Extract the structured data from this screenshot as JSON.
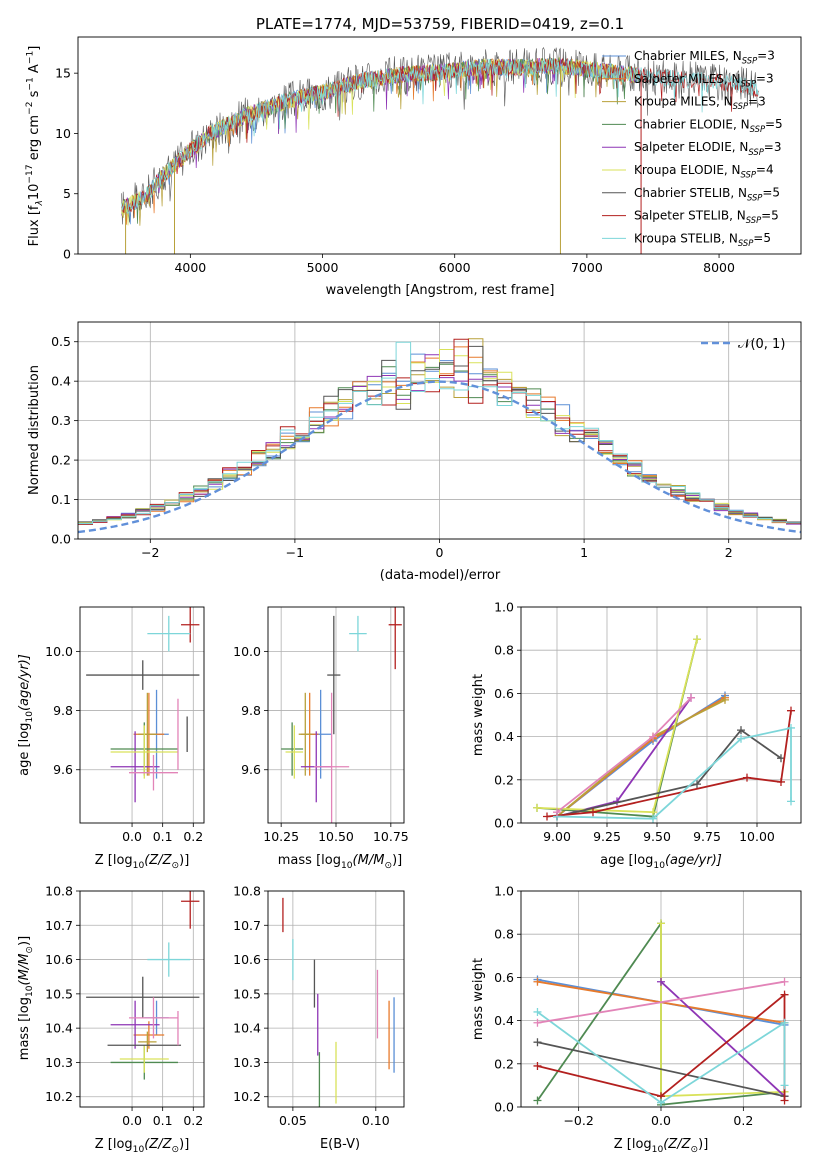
{
  "figure": {
    "title": "PLATE=1774, MJD=53759, FIBERID=0419, z=0.1"
  },
  "colors": {
    "Chabrier MILES": "#5b8fd6",
    "Salpeter MILES": "#e77a2c",
    "Kroupa MILES": "#b8a13a",
    "Chabrier ELODIE": "#4f8a52",
    "Salpeter ELODIE": "#8e35b5",
    "Kroupa ELODIE": "#d9e25a",
    "Chabrier STELIB": "#555555",
    "Salpeter STELIB": "#b3201f",
    "Kroupa STELIB": "#7dd6d9",
    "pink": "#e284b8",
    "lightgreen": "#9fd46a",
    "normal_curve": "#6190d9",
    "grid": "#b0b0b0"
  },
  "chart_data": [
    {
      "id": "spectrum",
      "type": "line",
      "title": "PLATE=1774, MJD=53759, FIBERID=0419, z=0.1",
      "xlabel": "wavelength [Angstrom, rest frame]",
      "ylabel_main": "Flux [f",
      "ylabel_sub": "λ",
      "ylabel_rest": "10",
      "ylabel_exp": "−17",
      "ylabel_unit": " erg cm",
      "ylabel_unit_exp": "−2",
      "ylabel_unit2": " s",
      "ylabel_unit2_exp": "−1",
      "ylabel_unit3": " A",
      "ylabel_unit3_exp": "−1",
      "ylabel_close": "]",
      "xlim": [
        3150,
        8620
      ],
      "ylim": [
        0,
        18
      ],
      "xticks": [
        4000,
        5000,
        6000,
        7000,
        8000
      ],
      "yticks": [
        0,
        5,
        10,
        15
      ],
      "grid": false,
      "continuum": [
        [
          3480,
          3.8
        ],
        [
          3650,
          4.7
        ],
        [
          3800,
          6.6
        ],
        [
          3950,
          8.1
        ],
        [
          4150,
          10.0
        ],
        [
          4400,
          11.4
        ],
        [
          4700,
          12.6
        ],
        [
          5000,
          13.4
        ],
        [
          5300,
          14.4
        ],
        [
          5600,
          14.9
        ],
        [
          5900,
          15.1
        ],
        [
          6200,
          15.5
        ],
        [
          6500,
          15.5
        ],
        [
          6800,
          15.6
        ],
        [
          7100,
          15.2
        ],
        [
          7400,
          14.8
        ],
        [
          7700,
          14.5
        ],
        [
          8000,
          14.3
        ],
        [
          8300,
          13.7
        ]
      ],
      "spikes": [
        [
          3510,
          0
        ],
        [
          3880,
          0
        ],
        [
          6800,
          0
        ],
        [
          7410,
          0
        ]
      ],
      "legend_position": "right",
      "legend": [
        {
          "name": "Chabrier MILES",
          "n": "3"
        },
        {
          "name": "Salpeter MILES",
          "n": "3"
        },
        {
          "name": "Kroupa MILES",
          "n": "3"
        },
        {
          "name": "Chabrier ELODIE",
          "n": "5"
        },
        {
          "name": "Salpeter ELODIE",
          "n": "3"
        },
        {
          "name": "Kroupa ELODIE",
          "n": "4"
        },
        {
          "name": "Chabrier STELIB",
          "n": "5"
        },
        {
          "name": "Salpeter STELIB",
          "n": "5"
        },
        {
          "name": "Kroupa STELIB",
          "n": "5"
        }
      ]
    },
    {
      "id": "residuals",
      "type": "line",
      "xlabel": "(data-model)/error",
      "ylabel": "Normed distribution",
      "xlim": [
        -2.5,
        2.5
      ],
      "ylim": [
        0,
        0.55
      ],
      "xticks": [
        -2,
        -1,
        0,
        1,
        2
      ],
      "yticks": [
        0.0,
        0.1,
        0.2,
        0.3,
        0.4,
        0.5
      ],
      "grid": true,
      "legend_position": "top-right",
      "legend_label": "𝒩(0, 1)",
      "histogram": {
        "bin_width": 0.1,
        "range": [
          -2.5,
          2.5
        ],
        "series_count": 9
      }
    },
    {
      "id": "z_age",
      "type": "scatter",
      "xlabel_pre": "Z [log",
      "xlabel_sub": "10",
      "xlabel_post": "(Z/Z",
      "xlabel_sun": "⊙",
      "xlabel_end": ")]",
      "ylabel_pre": "age  [log",
      "ylabel_sub": "10",
      "ylabel_post": "(age/yr)]",
      "xlim": [
        -0.17,
        0.235
      ],
      "ylim": [
        9.42,
        10.15
      ],
      "xticks": [
        0.0,
        0.1,
        0.2
      ],
      "yticks": [
        9.6,
        9.8,
        10.0
      ],
      "grid": true,
      "points": [
        {
          "s": "Chabrier MILES",
          "x": 0.08,
          "y": 9.72,
          "dx": 0.04,
          "dy": 0.15
        },
        {
          "s": "Salpeter MILES",
          "x": 0.055,
          "y": 9.72,
          "dx": 0.05,
          "dy": 0.14
        },
        {
          "s": "Kroupa MILES",
          "x": 0.05,
          "y": 9.72,
          "dx": 0.03,
          "dy": 0.14
        },
        {
          "s": "Chabrier ELODIE",
          "x": 0.04,
          "y": 9.67,
          "dx": 0.11,
          "dy": 0.09
        },
        {
          "s": "Salpeter ELODIE",
          "x": 0.01,
          "y": 9.61,
          "dx": 0.08,
          "dy": 0.12
        },
        {
          "s": "Kroupa ELODIE",
          "x": 0.04,
          "y": 9.66,
          "dx": 0.11,
          "dy": 0.09
        },
        {
          "s": "Chabrier STELIB",
          "x": 0.035,
          "y": 9.92,
          "dx": 0.185,
          "dy": 0.05
        },
        {
          "s": "Salpeter STELIB",
          "x": 0.19,
          "y": 10.09,
          "dx": 0.03,
          "dy": 0.06
        },
        {
          "s": "Kroupa STELIB",
          "x": 0.12,
          "y": 10.06,
          "dx": 0.07,
          "dy": 0.06
        },
        {
          "s": "pink",
          "x": 0.07,
          "y": 9.59,
          "dx": 0.08,
          "dy": 0.06
        },
        {
          "s": "Chabrier STELIB",
          "x": 0.18,
          "y": 9.72,
          "dx": 0.0,
          "dy": 0.06
        },
        {
          "s": "pink",
          "x": 0.15,
          "y": 9.72,
          "dx": 0.0,
          "dy": 0.12
        }
      ]
    },
    {
      "id": "mass_age",
      "type": "scatter",
      "xlabel_pre": "mass [log",
      "xlabel_sub": "10",
      "xlabel_post": "(M/M",
      "xlabel_sun": "⊙",
      "xlabel_end": ")]",
      "xlim": [
        10.19,
        10.81
      ],
      "ylim": [
        9.42,
        10.15
      ],
      "xticks": [
        10.25,
        10.5,
        10.75
      ],
      "yticks": [
        9.6,
        9.8,
        10.0
      ],
      "grid": true,
      "points": [
        {
          "s": "Chabrier MILES",
          "x": 10.43,
          "y": 9.72,
          "dx": 0.05,
          "dy": 0.15
        },
        {
          "s": "Salpeter MILES",
          "x": 10.38,
          "y": 9.72,
          "dx": 0.04,
          "dy": 0.14
        },
        {
          "s": "Kroupa MILES",
          "x": 10.36,
          "y": 9.72,
          "dx": 0.03,
          "dy": 0.14
        },
        {
          "s": "Chabrier ELODIE",
          "x": 10.3,
          "y": 9.67,
          "dx": 0.05,
          "dy": 0.09
        },
        {
          "s": "Salpeter ELODIE",
          "x": 10.41,
          "y": 9.61,
          "dx": 0.07,
          "dy": 0.12
        },
        {
          "s": "Kroupa ELODIE",
          "x": 10.31,
          "y": 9.66,
          "dx": 0.04,
          "dy": 0.09
        },
        {
          "s": "Chabrier STELIB",
          "x": 10.49,
          "y": 9.92,
          "dx": 0.03,
          "dy": 0.2
        },
        {
          "s": "Salpeter STELIB",
          "x": 10.77,
          "y": 10.09,
          "dx": 0.03,
          "dy": 0.15
        },
        {
          "s": "Kroupa STELIB",
          "x": 10.6,
          "y": 10.06,
          "dx": 0.04,
          "dy": 0.06
        },
        {
          "s": "pink",
          "x": 10.48,
          "y": 9.61,
          "dx": 0.08,
          "dy": 0.25
        }
      ]
    },
    {
      "id": "age_weight",
      "type": "line",
      "xlabel_pre": "age  [log",
      "xlabel_sub": "10",
      "xlabel_post": "(age/yr)]",
      "ylabel": "mass weight",
      "xlim": [
        8.82,
        10.22
      ],
      "ylim": [
        0.0,
        1.0
      ],
      "xticks": [
        9.0,
        9.25,
        9.5,
        9.75,
        10.0
      ],
      "yticks": [
        0.0,
        0.2,
        0.4,
        0.6,
        0.8,
        1.0
      ],
      "grid": true,
      "series": [
        {
          "s": "Chabrier MILES",
          "x": [
            9.0,
            9.48,
            9.84
          ],
          "y": [
            0.03,
            0.38,
            0.59
          ]
        },
        {
          "s": "Salpeter MILES",
          "x": [
            9.0,
            9.48,
            9.84
          ],
          "y": [
            0.03,
            0.39,
            0.58
          ]
        },
        {
          "s": "Kroupa MILES",
          "x": [
            9.0,
            9.48,
            9.84
          ],
          "y": [
            0.03,
            0.4,
            0.57
          ]
        },
        {
          "s": "Chabrier ELODIE",
          "x": [
            8.9,
            9.48,
            9.7
          ],
          "y": [
            0.07,
            0.03,
            0.85
          ]
        },
        {
          "s": "Salpeter ELODIE",
          "x": [
            9.0,
            9.3,
            9.67
          ],
          "y": [
            0.03,
            0.1,
            0.58
          ]
        },
        {
          "s": "Kroupa ELODIE",
          "x": [
            8.9,
            9.48,
            9.7
          ],
          "y": [
            0.07,
            0.05,
            0.85
          ]
        },
        {
          "s": "Chabrier STELIB",
          "x": [
            9.0,
            9.7,
            9.92,
            10.12
          ],
          "y": [
            0.03,
            0.18,
            0.43,
            0.3
          ]
        },
        {
          "s": "Salpeter STELIB",
          "x": [
            8.95,
            9.18,
            9.95,
            10.12,
            10.17
          ],
          "y": [
            0.03,
            0.05,
            0.21,
            0.19,
            0.52
          ]
        },
        {
          "s": "Kroupa STELIB",
          "x": [
            9.0,
            9.48,
            9.92,
            10.17,
            10.17
          ],
          "y": [
            0.03,
            0.02,
            0.39,
            0.44,
            0.1
          ]
        },
        {
          "s": "pink",
          "x": [
            9.0,
            9.48,
            9.67
          ],
          "y": [
            0.05,
            0.4,
            0.58
          ]
        }
      ]
    },
    {
      "id": "z_mass",
      "type": "scatter",
      "xlabel_pre": "Z [log",
      "xlabel_sub": "10",
      "xlabel_post": "(Z/Z",
      "xlabel_sun": "⊙",
      "xlabel_end": ")]",
      "ylabel_pre": "mass [log",
      "ylabel_sub": "10",
      "ylabel_post": "(M/M",
      "ylabel_sun": "⊙",
      "ylabel_end": ")]",
      "xlim": [
        -0.17,
        0.235
      ],
      "ylim": [
        10.17,
        10.8
      ],
      "xticks": [
        0.0,
        0.1,
        0.2
      ],
      "yticks": [
        10.2,
        10.3,
        10.4,
        10.5,
        10.6,
        10.7,
        10.8
      ],
      "grid": true,
      "points": [
        {
          "s": "Chabrier MILES",
          "x": 0.08,
          "y": 10.43,
          "dx": 0.04,
          "dy": 0.05
        },
        {
          "s": "Salpeter MILES",
          "x": 0.055,
          "y": 10.38,
          "dx": 0.05,
          "dy": 0.04
        },
        {
          "s": "Kroupa MILES",
          "x": 0.05,
          "y": 10.36,
          "dx": 0.03,
          "dy": 0.03
        },
        {
          "s": "Chabrier ELODIE",
          "x": 0.04,
          "y": 10.3,
          "dx": 0.11,
          "dy": 0.05
        },
        {
          "s": "Salpeter ELODIE",
          "x": 0.01,
          "y": 10.41,
          "dx": 0.08,
          "dy": 0.07
        },
        {
          "s": "Kroupa ELODIE",
          "x": 0.04,
          "y": 10.31,
          "dx": 0.08,
          "dy": 0.04
        },
        {
          "s": "Chabrier STELIB",
          "x": 0.035,
          "y": 10.49,
          "dx": 0.185,
          "dy": 0.06
        },
        {
          "s": "Salpeter STELIB",
          "x": 0.19,
          "y": 10.77,
          "dx": 0.03,
          "dy": 0.08
        },
        {
          "s": "Kroupa STELIB",
          "x": 0.12,
          "y": 10.6,
          "dx": 0.07,
          "dy": 0.05
        },
        {
          "s": "pink",
          "x": 0.07,
          "y": 10.43,
          "dx": 0.08,
          "dy": 0.06
        },
        {
          "s": "Chabrier STELIB",
          "x": 0.04,
          "y": 10.35,
          "dx": 0.12,
          "dy": 0.0
        },
        {
          "s": "pink",
          "x": 0.15,
          "y": 10.4,
          "dx": 0.0,
          "dy": 0.05
        }
      ]
    },
    {
      "id": "ebv_mass",
      "type": "scatter",
      "xlabel": "E(B-V)",
      "xlim": [
        0.035,
        0.117
      ],
      "ylim": [
        10.17,
        10.8
      ],
      "xticks": [
        0.05,
        0.1
      ],
      "yticks": [
        10.2,
        10.3,
        10.4,
        10.5,
        10.6,
        10.7,
        10.8
      ],
      "grid": true,
      "points": [
        {
          "s": "Salpeter STELIB",
          "x": 0.044,
          "y": 10.73,
          "dx": 0.0,
          "dy": 0.05
        },
        {
          "s": "Kroupa STELIB",
          "x": 0.05,
          "y": 10.6,
          "dx": 0.0,
          "dy": 0.06
        },
        {
          "s": "Chabrier STELIB",
          "x": 0.063,
          "y": 10.53,
          "dx": 0.0,
          "dy": 0.07
        },
        {
          "s": "Salpeter ELODIE",
          "x": 0.065,
          "y": 10.41,
          "dx": 0.0,
          "dy": 0.09
        },
        {
          "s": "Chabrier ELODIE",
          "x": 0.066,
          "y": 10.25,
          "dx": 0.0,
          "dy": 0.08
        },
        {
          "s": "Kroupa ELODIE",
          "x": 0.076,
          "y": 10.27,
          "dx": 0.0,
          "dy": 0.09
        },
        {
          "s": "pink",
          "x": 0.101,
          "y": 10.47,
          "dx": 0.0,
          "dy": 0.1
        },
        {
          "s": "Salpeter MILES",
          "x": 0.108,
          "y": 10.38,
          "dx": 0.0,
          "dy": 0.1
        },
        {
          "s": "Chabrier MILES",
          "x": 0.111,
          "y": 10.38,
          "dx": 0.0,
          "dy": 0.11
        }
      ]
    },
    {
      "id": "z_weight",
      "type": "line",
      "xlabel_pre": "Z [log",
      "xlabel_sub": "10",
      "xlabel_post": "(Z/Z",
      "xlabel_sun": "⊙",
      "xlabel_end": ")]",
      "ylabel": "mass weight",
      "xlim": [
        -0.34,
        0.34
      ],
      "ylim": [
        0.0,
        1.0
      ],
      "xticks": [
        -0.2,
        0.0,
        0.2
      ],
      "yticks": [
        0.0,
        0.2,
        0.4,
        0.6,
        0.8,
        1.0
      ],
      "grid": true,
      "series": [
        {
          "s": "Chabrier MILES",
          "x": [
            -0.3,
            0.3
          ],
          "y": [
            0.59,
            0.38
          ]
        },
        {
          "s": "Salpeter MILES",
          "x": [
            -0.3,
            0.3
          ],
          "y": [
            0.58,
            0.39
          ]
        },
        {
          "s": "Chabrier ELODIE",
          "x": [
            -0.3,
            0.0,
            0.0,
            0.3
          ],
          "y": [
            0.03,
            0.85,
            0.01,
            0.07
          ]
        },
        {
          "s": "Kroupa ELODIE",
          "x": [
            0.0,
            0.0,
            0.3
          ],
          "y": [
            0.85,
            0.05,
            0.07
          ]
        },
        {
          "s": "Salpeter ELODIE",
          "x": [
            0.0,
            0.3
          ],
          "y": [
            0.58,
            0.05
          ]
        },
        {
          "s": "Chabrier STELIB",
          "x": [
            -0.3,
            0.3
          ],
          "y": [
            0.3,
            0.05
          ]
        },
        {
          "s": "Salpeter STELIB",
          "x": [
            -0.3,
            0.0,
            0.3,
            0.3
          ],
          "y": [
            0.19,
            0.05,
            0.52,
            0.03
          ]
        },
        {
          "s": "Kroupa STELIB",
          "x": [
            -0.3,
            0.0,
            0.3,
            0.3
          ],
          "y": [
            0.44,
            0.02,
            0.39,
            0.1
          ]
        },
        {
          "s": "pink",
          "x": [
            -0.3,
            0.3
          ],
          "y": [
            0.39,
            0.58
          ]
        }
      ]
    }
  ]
}
